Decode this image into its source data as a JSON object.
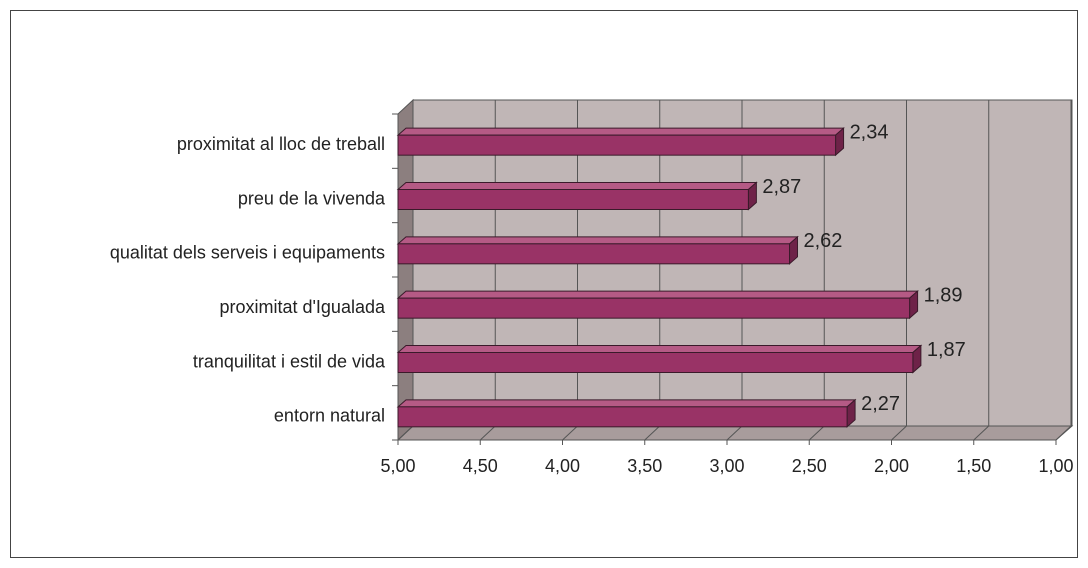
{
  "chart_data": {
    "type": "bar",
    "orientation": "horizontal",
    "categories": [
      "proximitat al lloc de treball",
      "preu de la vivenda",
      "qualitat dels serveis i equipaments",
      "proximitat d'Igualada",
      "tranquilitat i estil de vida",
      "entorn natural"
    ],
    "values": [
      2.34,
      2.87,
      2.62,
      1.89,
      1.87,
      2.27
    ],
    "value_labels": [
      "2,34",
      "2,87",
      "2,62",
      "1,89",
      "1,87",
      "2,27"
    ],
    "color": "#993366",
    "xlim": [
      5,
      1
    ],
    "xticks": [
      {
        "value": 5,
        "label": "5,00"
      },
      {
        "value": 4.5,
        "label": "4,50"
      },
      {
        "value": 4,
        "label": "4,00"
      },
      {
        "value": 3.5,
        "label": "3,50"
      },
      {
        "value": 3,
        "label": "3,00"
      },
      {
        "value": 2.5,
        "label": "2,50"
      },
      {
        "value": 2,
        "label": "2,00"
      },
      {
        "value": 1.5,
        "label": "1,50"
      },
      {
        "value": 1,
        "label": "1,00"
      }
    ],
    "grid": true
  }
}
